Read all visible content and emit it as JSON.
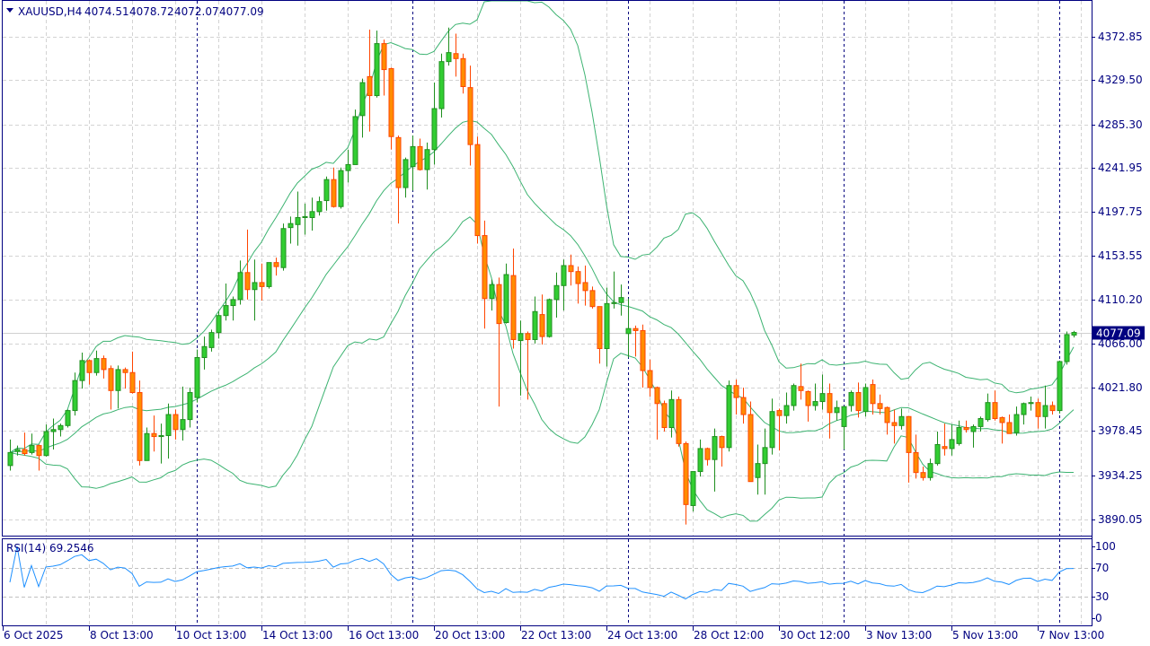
{
  "header": {
    "symbol": "XAUUSD,H4",
    "open": "4074.51",
    "high": "4078.72",
    "low": "4072.07",
    "close": "4077.09",
    "menu_icon": "triangle-down-icon"
  },
  "rsi_panel": {
    "label": "RSI(14) 69.2546"
  },
  "chart_data": {
    "type": "candlestick",
    "symbol": "XAUUSD",
    "timeframe": "H4",
    "ylim": [
      3873.0,
      4409.6
    ],
    "grid": true,
    "price_ticks": [
      "4372.85",
      "4329.50",
      "4285.30",
      "4241.95",
      "4197.75",
      "4153.55",
      "4110.20",
      "4066.00",
      "4021.80",
      "3978.45",
      "3934.25",
      "3890.05"
    ],
    "current_price": "4077.09",
    "x_tick_labels": [
      {
        "label": "6 Oct 2025",
        "candle": -1
      },
      {
        "label": "8 Oct 13:00",
        "candle": 11
      },
      {
        "label": "10 Oct 13:00",
        "candle": 23
      },
      {
        "label": "14 Oct 13:00",
        "candle": 35
      },
      {
        "label": "16 Oct 13:00",
        "candle": 47
      },
      {
        "label": "20 Oct 13:00",
        "candle": 59
      },
      {
        "label": "22 Oct 13:00",
        "candle": 71
      },
      {
        "label": "24 Oct 13:00",
        "candle": 83
      },
      {
        "label": "28 Oct 12:00",
        "candle": 95
      },
      {
        "label": "30 Oct 12:00",
        "candle": 107
      },
      {
        "label": "3 Nov 13:00",
        "candle": 119
      },
      {
        "label": "5 Nov 13:00",
        "candle": 131
      },
      {
        "label": "7 Nov 13:00",
        "candle": 143
      }
    ],
    "period_separators": [
      26,
      56,
      86,
      116,
      146
    ],
    "candles": [
      [
        3944,
        3970,
        3939,
        3957
      ],
      [
        3958,
        3964,
        3954,
        3960
      ],
      [
        3960,
        3977,
        3954,
        3956
      ],
      [
        3957,
        3976,
        3955,
        3964
      ],
      [
        3964,
        3965,
        3939,
        3954
      ],
      [
        3954,
        3985,
        3953,
        3978
      ],
      [
        3978,
        3991,
        3960,
        3980
      ],
      [
        3980,
        3986,
        3973,
        3984
      ],
      [
        3984,
        4000,
        3982,
        3999
      ],
      [
        3999,
        4037,
        3994,
        4029
      ],
      [
        4029,
        4057,
        4021,
        4049
      ],
      [
        4049,
        4050,
        4025,
        4037
      ],
      [
        4037,
        4059,
        4034,
        4051
      ],
      [
        4051,
        4054,
        4031,
        4040
      ],
      [
        4041,
        4044,
        4000,
        4019
      ],
      [
        4019,
        4044,
        4001,
        4040
      ],
      [
        4040,
        4042,
        4021,
        4037
      ],
      [
        4037,
        4058,
        4016,
        4017
      ],
      [
        4017,
        4029,
        3944,
        3949
      ],
      [
        3949,
        3982,
        3949,
        3976
      ],
      [
        3976,
        3994,
        3958,
        3973
      ],
      [
        3973,
        3986,
        3946,
        3974
      ],
      [
        3974,
        4006,
        3951,
        3995
      ],
      [
        3995,
        4000,
        3970,
        3980
      ],
      [
        3980,
        4023,
        3969,
        3990
      ],
      [
        3990,
        4022,
        3982,
        4017
      ],
      [
        4012,
        4060,
        4007,
        4052
      ],
      [
        4052,
        4073,
        4040,
        4063
      ],
      [
        4062,
        4080,
        4058,
        4077
      ],
      [
        4077,
        4098,
        4071,
        4094
      ],
      [
        4094,
        4126,
        4089,
        4104
      ],
      [
        4104,
        4113,
        4089,
        4110
      ],
      [
        4110,
        4149,
        4105,
        4137
      ],
      [
        4137,
        4180,
        4110,
        4120
      ],
      [
        4120,
        4150,
        4089,
        4127
      ],
      [
        4127,
        4146,
        4109,
        4123
      ],
      [
        4123,
        4147,
        4121,
        4147
      ],
      [
        4147,
        4152,
        4134,
        4143
      ],
      [
        4142,
        4186,
        4139,
        4181
      ],
      [
        4182,
        4193,
        4166,
        4186
      ],
      [
        4185,
        4218,
        4164,
        4192
      ],
      [
        4192,
        4206,
        4175,
        4193
      ],
      [
        4192,
        4212,
        4179,
        4198
      ],
      [
        4198,
        4213,
        4194,
        4208
      ],
      [
        4209,
        4233,
        4199,
        4230
      ],
      [
        4230,
        4242,
        4202,
        4203
      ],
      [
        4203,
        4242,
        4201,
        4239
      ],
      [
        4239,
        4260,
        4227,
        4245
      ],
      [
        4245,
        4300,
        4245,
        4293
      ],
      [
        4294,
        4331,
        4272,
        4327
      ],
      [
        4333,
        4380,
        4278,
        4314
      ],
      [
        4314,
        4379,
        4312,
        4366
      ],
      [
        4366,
        4370,
        4314,
        4340
      ],
      [
        4341,
        4342,
        4260,
        4273
      ],
      [
        4272,
        4274,
        4186,
        4222
      ],
      [
        4222,
        4252,
        4212,
        4250
      ],
      [
        4243,
        4274,
        4219,
        4263
      ],
      [
        4263,
        4271,
        4239,
        4240
      ],
      [
        4240,
        4267,
        4220,
        4260
      ],
      [
        4260,
        4327,
        4245,
        4301
      ],
      [
        4301,
        4356,
        4292,
        4348
      ],
      [
        4348,
        4382,
        4344,
        4357
      ],
      [
        4356,
        4376,
        4333,
        4351
      ],
      [
        4351,
        4356,
        4316,
        4323
      ],
      [
        4322,
        4344,
        4244,
        4265
      ],
      [
        4265,
        4273,
        4166,
        4174
      ],
      [
        4174,
        4189,
        4081,
        4111
      ],
      [
        4111,
        4130,
        4099,
        4125
      ],
      [
        4125,
        4132,
        4003,
        4086
      ],
      [
        4087,
        4146,
        4086,
        4135
      ],
      [
        4134,
        4161,
        4061,
        4070
      ],
      [
        4069,
        4089,
        4014,
        4076
      ],
      [
        4076,
        4078,
        4010,
        4070
      ],
      [
        4070,
        4113,
        4066,
        4098
      ],
      [
        4095,
        4115,
        4065,
        4073
      ],
      [
        4073,
        4111,
        4072,
        4110
      ],
      [
        4110,
        4137,
        4092,
        4124
      ],
      [
        4124,
        4150,
        4099,
        4144
      ],
      [
        4144,
        4155,
        4124,
        4138
      ],
      [
        4138,
        4143,
        4106,
        4126
      ],
      [
        4127,
        4144,
        4104,
        4119
      ],
      [
        4119,
        4123,
        4101,
        4103
      ],
      [
        4103,
        4103,
        4046,
        4061
      ],
      [
        4061,
        4122,
        4043,
        4106
      ],
      [
        4106,
        4138,
        4101,
        4107
      ],
      [
        4107,
        4125,
        4094,
        4112
      ],
      [
        4076,
        4111,
        4052,
        4081
      ],
      [
        4081,
        4084,
        4053,
        4079
      ],
      [
        4079,
        4085,
        4022,
        4039
      ],
      [
        4039,
        4050,
        4013,
        4022
      ],
      [
        4022,
        4023,
        3970,
        4006
      ],
      [
        4006,
        4009,
        3978,
        3982
      ],
      [
        3982,
        4019,
        3972,
        4010
      ],
      [
        4010,
        4013,
        3963,
        3966
      ],
      [
        3966,
        3968,
        3885,
        3905
      ],
      [
        3904,
        3938,
        3898,
        3938
      ],
      [
        3938,
        3970,
        3933,
        3961
      ],
      [
        3961,
        3962,
        3944,
        3950
      ],
      [
        3950,
        3981,
        3918,
        3973
      ],
      [
        3973,
        3974,
        3943,
        3962
      ],
      [
        3962,
        4029,
        3958,
        4024
      ],
      [
        4024,
        4030,
        3995,
        4012
      ],
      [
        4012,
        4022,
        3986,
        3995
      ],
      [
        3995,
        4008,
        3928,
        3928
      ],
      [
        3932,
        3965,
        3915,
        3946
      ],
      [
        3946,
        3981,
        3915,
        3962
      ],
      [
        3962,
        4011,
        3955,
        3998
      ],
      [
        3999,
        4001,
        3959,
        3994
      ],
      [
        3994,
        4017,
        3986,
        4004
      ],
      [
        4004,
        4026,
        3999,
        4024
      ],
      [
        4023,
        4046,
        4010,
        4019
      ],
      [
        4018,
        4019,
        3988,
        4004
      ],
      [
        4004,
        4026,
        3999,
        4008
      ],
      [
        4008,
        4035,
        4000,
        4016
      ],
      [
        4016,
        4026,
        3971,
        3997
      ],
      [
        3997,
        4009,
        3989,
        4002
      ],
      [
        3983,
        4003,
        3960,
        4003
      ],
      [
        4004,
        4019,
        3998,
        4017
      ],
      [
        4017,
        4027,
        3992,
        3999
      ],
      [
        3998,
        4026,
        3993,
        4022
      ],
      [
        4025,
        4030,
        3995,
        4006
      ],
      [
        4006,
        4015,
        3995,
        4001
      ],
      [
        4002,
        4003,
        3975,
        3987
      ],
      [
        3987,
        4000,
        3966,
        3984
      ],
      [
        3984,
        4001,
        3980,
        3993
      ],
      [
        3993,
        3993,
        3927,
        3957
      ],
      [
        3957,
        3975,
        3931,
        3937
      ],
      [
        3937,
        3943,
        3929,
        3932
      ],
      [
        3932,
        3951,
        3929,
        3946
      ],
      [
        3946,
        3978,
        3944,
        3965
      ],
      [
        3963,
        3986,
        3954,
        3961
      ],
      [
        3961,
        3985,
        3954,
        3970
      ],
      [
        3966,
        3989,
        3964,
        3982
      ],
      [
        3982,
        3989,
        3977,
        3980
      ],
      [
        3978,
        3985,
        3962,
        3983
      ],
      [
        3983,
        3993,
        3978,
        3991
      ],
      [
        3990,
        4016,
        3988,
        4007
      ],
      [
        4007,
        4019,
        3989,
        3991
      ],
      [
        3992,
        3993,
        3966,
        3987
      ],
      [
        3987,
        3995,
        3976,
        3976
      ],
      [
        3977,
        4003,
        3974,
        3995
      ],
      [
        3995,
        4007,
        3985,
        4006
      ],
      [
        4006,
        4013,
        3999,
        4007
      ],
      [
        4007,
        4011,
        3981,
        3993
      ],
      [
        3993,
        4024,
        3981,
        4004
      ],
      [
        4004,
        4008,
        3995,
        3999
      ],
      [
        3999,
        4049,
        3996,
        4048
      ],
      [
        4048,
        4078,
        4045,
        4075
      ],
      [
        4074.51,
        4078.72,
        4072.07,
        4077.09
      ]
    ],
    "indicators": {
      "bollinger": {
        "period": 20,
        "deviation": 2
      },
      "rsi": {
        "period": 14,
        "value": "69.2546",
        "levels": [
          30,
          70
        ],
        "ylim": [
          0,
          100
        ],
        "ticks": [
          "100",
          "70",
          "30",
          "0"
        ]
      }
    },
    "colors": {
      "bull_body": "#32cd32",
      "bull_border": "#1f8f1f",
      "bear_body": "#ff8c00",
      "bear_border": "#ff4500",
      "bands": "#3cb371",
      "rsi_line": "#1e90ff",
      "axis": "#000080",
      "grid": "#d3d3d3",
      "separator": "#000080",
      "price_label_bg": "#000080"
    }
  }
}
